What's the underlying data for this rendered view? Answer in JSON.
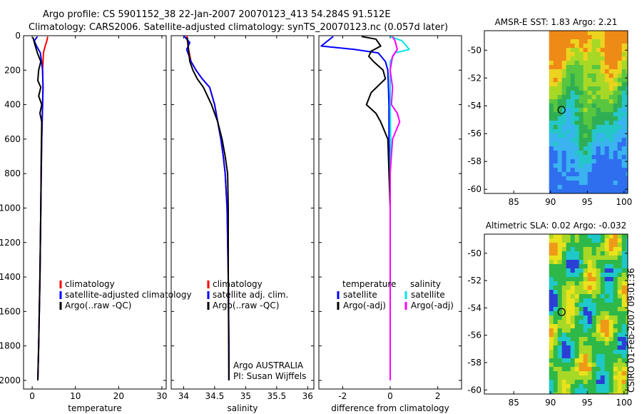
{
  "titles": {
    "line1": "Argo profile: CS 5901152_38 22-Jan-2007 20070123_413 54.284S 91.512E",
    "line2": "Climatology: CARS2006. Satellite-adjusted climatology: synTS_20070123.nc (0.057d later)"
  },
  "stamp": "CSIRO 01-Feb-2007 09:01:36",
  "colors": {
    "climatology": "#ff0000",
    "satellite": "#0000ff",
    "argo": "#000000",
    "satellite_salinity": "#00e5e5",
    "argo_salinity": "#ff00ff",
    "frame": "#000000"
  },
  "chart_data": [
    {
      "id": "temperature",
      "type": "line",
      "xlabel": "temperature",
      "ylabel": "",
      "xlim": [
        -2,
        31
      ],
      "ylim": [
        2050,
        0
      ],
      "xticks": [
        0,
        10,
        20,
        30
      ],
      "yticks": [
        0,
        200,
        400,
        600,
        800,
        1000,
        1200,
        1400,
        1600,
        1800,
        2000
      ],
      "show_yticklabels": true,
      "legend": {
        "placement": "center-right",
        "entries": [
          {
            "label": "climatology",
            "color": "#ff0000"
          },
          {
            "label": "satellite-adjusted climatology",
            "color": "#0000ff"
          },
          {
            "label": "Argo(..raw -QC)",
            "color": "#000000"
          }
        ]
      },
      "annotation": [],
      "series": [
        {
          "name": "climatology",
          "color": "#ff0000",
          "x": [
            3.6,
            3.4,
            3.0,
            2.6,
            2.4,
            2.5,
            2.4,
            2.3,
            2.2,
            2.1,
            2.0,
            1.8,
            1.5,
            1.3
          ],
          "y": [
            5,
            30,
            60,
            100,
            200,
            300,
            400,
            500,
            600,
            800,
            1000,
            1400,
            1800,
            2000
          ]
        },
        {
          "name": "satellite-adjusted climatology",
          "color": "#0000ff",
          "x": [
            1.2,
            0.5,
            1.0,
            1.9,
            2.4,
            2.5,
            2.4,
            2.3,
            2.2,
            2.1,
            2.0,
            1.8,
            1.5,
            1.3
          ],
          "y": [
            5,
            30,
            60,
            100,
            200,
            300,
            400,
            500,
            600,
            800,
            1000,
            1400,
            1800,
            2000
          ]
        },
        {
          "name": "Argo(..raw -QC)",
          "color": "#000000",
          "x": [
            0.2,
            0.6,
            1.2,
            2.0,
            1.5,
            1.3,
            2.0,
            1.5,
            2.2,
            1.8,
            2.2,
            2.1,
            2.0,
            1.8,
            1.5,
            1.3
          ],
          "y": [
            10,
            50,
            100,
            150,
            200,
            260,
            300,
            350,
            400,
            450,
            500,
            700,
            1000,
            1400,
            1800,
            2000
          ]
        }
      ]
    },
    {
      "id": "salinity",
      "type": "line",
      "xlabel": "salinity",
      "ylabel": "",
      "xlim": [
        33.8,
        36.1
      ],
      "ylim": [
        2050,
        0
      ],
      "xticks": [
        34,
        34.5,
        35,
        35.5,
        36
      ],
      "yticks": [
        0,
        200,
        400,
        600,
        800,
        1000,
        1200,
        1400,
        1600,
        1800,
        2000
      ],
      "show_yticklabels": false,
      "legend": {
        "placement": "center-right",
        "entries": [
          {
            "label": "climatology",
            "color": "#ff0000"
          },
          {
            "label": "satellite adj. clim.",
            "color": "#0000ff"
          },
          {
            "label": "Argo(..raw -QC)",
            "color": "#000000"
          }
        ]
      },
      "annotation": [
        "Argo AUSTRALIA",
        "PI: Susan Wijffels"
      ],
      "series": [
        {
          "name": "climatology",
          "color": "#ff0000",
          "x": [
            34.05,
            34.08,
            34.12,
            34.2,
            34.3,
            34.42,
            34.5,
            34.55,
            34.6,
            34.64,
            34.67,
            34.7,
            34.72,
            34.73,
            34.73
          ],
          "y": [
            0,
            80,
            150,
            200,
            250,
            300,
            400,
            500,
            600,
            700,
            800,
            1000,
            1400,
            1800,
            2000
          ]
        },
        {
          "name": "satellite adj. clim.",
          "color": "#0000ff",
          "x": [
            34.0,
            34.1,
            34.05,
            34.12,
            34.2,
            34.3,
            34.42,
            34.5,
            34.55,
            34.6,
            34.64,
            34.67,
            34.7,
            34.72,
            34.73,
            34.73
          ],
          "y": [
            0,
            40,
            80,
            150,
            200,
            250,
            300,
            400,
            500,
            600,
            700,
            800,
            1000,
            1400,
            1800,
            2000
          ]
        },
        {
          "name": "Argo(..raw -QC)",
          "color": "#000000",
          "x": [
            34.06,
            34.08,
            34.1,
            34.15,
            34.22,
            34.32,
            34.45,
            34.55,
            34.62,
            34.67,
            34.71,
            34.72,
            34.72,
            34.73
          ],
          "y": [
            10,
            80,
            150,
            200,
            250,
            300,
            400,
            500,
            600,
            700,
            800,
            1000,
            1400,
            2000
          ]
        }
      ]
    },
    {
      "id": "difference",
      "type": "line",
      "xlabel": "difference from climatology",
      "ylabel": "",
      "xlim": [
        -3.0,
        3.0
      ],
      "ylim": [
        2050,
        0
      ],
      "xticks": [
        -2,
        0,
        2
      ],
      "yticks": [
        0,
        200,
        400,
        600,
        800,
        1000,
        1200,
        1400,
        1600,
        1800,
        2000
      ],
      "show_yticklabels": false,
      "legend": {
        "placement": "center",
        "entries": [
          {
            "label": "temperature",
            "color": "",
            "group": "temperature"
          },
          {
            "label": "satellite",
            "color": "#0000ff",
            "group": "temperature"
          },
          {
            "label": "Argo(-adj)",
            "color": "#000000",
            "group": "temperature"
          },
          {
            "label": "salinity",
            "color": "",
            "group": "salinity"
          },
          {
            "label": "satellite",
            "color": "#00e5e5",
            "group": "salinity"
          },
          {
            "label": "Argo(-adj)",
            "color": "#ff00ff",
            "group": "salinity"
          }
        ]
      },
      "annotation": [],
      "series": [
        {
          "name": "temperature satellite",
          "color": "#0000ff",
          "x": [
            -2.4,
            -2.9,
            -1.5,
            -0.5,
            -0.2,
            -0.1,
            -0.05,
            -0.05,
            0.0,
            0.0,
            0.0,
            0.0
          ],
          "y": [
            5,
            60,
            80,
            100,
            150,
            200,
            400,
            600,
            1000,
            1400,
            1800,
            2000
          ]
        },
        {
          "name": "temperature Argo(-adj)",
          "color": "#000000",
          "x": [
            -1.2,
            -0.6,
            -0.4,
            -0.8,
            -0.9,
            -0.7,
            -0.3,
            -0.2,
            -0.8,
            -1.0,
            -0.6,
            -0.4,
            -0.1,
            0.0,
            0.0,
            0.0
          ],
          "y": [
            5,
            20,
            60,
            90,
            120,
            150,
            200,
            250,
            330,
            400,
            450,
            500,
            600,
            1000,
            1600,
            2000
          ]
        },
        {
          "name": "salinity satellite",
          "color": "#00e5e5",
          "x": [
            0.0,
            0.5,
            0.8,
            0.2,
            0.0,
            0.0,
            0.0,
            0.02,
            0.0,
            0.0,
            0.0,
            0.0
          ],
          "y": [
            5,
            30,
            80,
            100,
            150,
            200,
            400,
            600,
            800,
            1200,
            1600,
            2000
          ]
        },
        {
          "name": "salinity Argo(-adj)",
          "color": "#ff00ff",
          "x": [
            0.1,
            0.2,
            0.3,
            0.1,
            0.0,
            0.1,
            0.05,
            0.3,
            0.4,
            0.1,
            0.0,
            0.0,
            0.0
          ],
          "y": [
            5,
            30,
            80,
            120,
            200,
            300,
            400,
            450,
            500,
            600,
            800,
            1400,
            2000
          ]
        }
      ]
    },
    {
      "id": "amsr",
      "type": "heatmap",
      "title": "AMSR-E SST: 1.83 Argo: 2.21",
      "xlabel": "",
      "ylabel": "",
      "xlim": [
        81,
        100.5
      ],
      "ylim": [
        -60.3,
        -48.6
      ],
      "data_x_start": 89.8,
      "xticks": [
        85,
        90,
        95,
        100
      ],
      "yticks": [
        -50,
        -52,
        -54,
        -56,
        -58,
        -60
      ],
      "marker": {
        "x": 91.5,
        "y": -54.3
      },
      "colors": [
        "#2f6fef",
        "#3ab3f0",
        "#24c6c8",
        "#2fae55",
        "#59c640",
        "#a8d826",
        "#ecd31f",
        "#ee8a16",
        "#c84d10"
      ],
      "stops": [
        0.0,
        0.14,
        0.28,
        0.42,
        0.55,
        0.68,
        0.8,
        0.9,
        1.0
      ]
    },
    {
      "id": "sla",
      "type": "heatmap",
      "title": "Altimetric SLA: 0.02 Argo: -0.032",
      "xlabel": "",
      "ylabel": "",
      "xlim": [
        81,
        100.5
      ],
      "ylim": [
        -60.3,
        -48.6
      ],
      "data_x_start": 89.8,
      "xticks": [
        85,
        90,
        95,
        100
      ],
      "yticks": [
        -50,
        -52,
        -54,
        -56,
        -58,
        -60
      ],
      "marker": {
        "x": 91.5,
        "y": -54.3
      },
      "colors": [
        "#2b3fd6",
        "#1fc8c8",
        "#2eb84a",
        "#a8d826",
        "#e9e21c",
        "#ee9a18",
        "#d2441a"
      ],
      "stops": [
        0.0,
        0.1,
        0.28,
        0.5,
        0.66,
        0.82,
        1.0
      ]
    }
  ]
}
